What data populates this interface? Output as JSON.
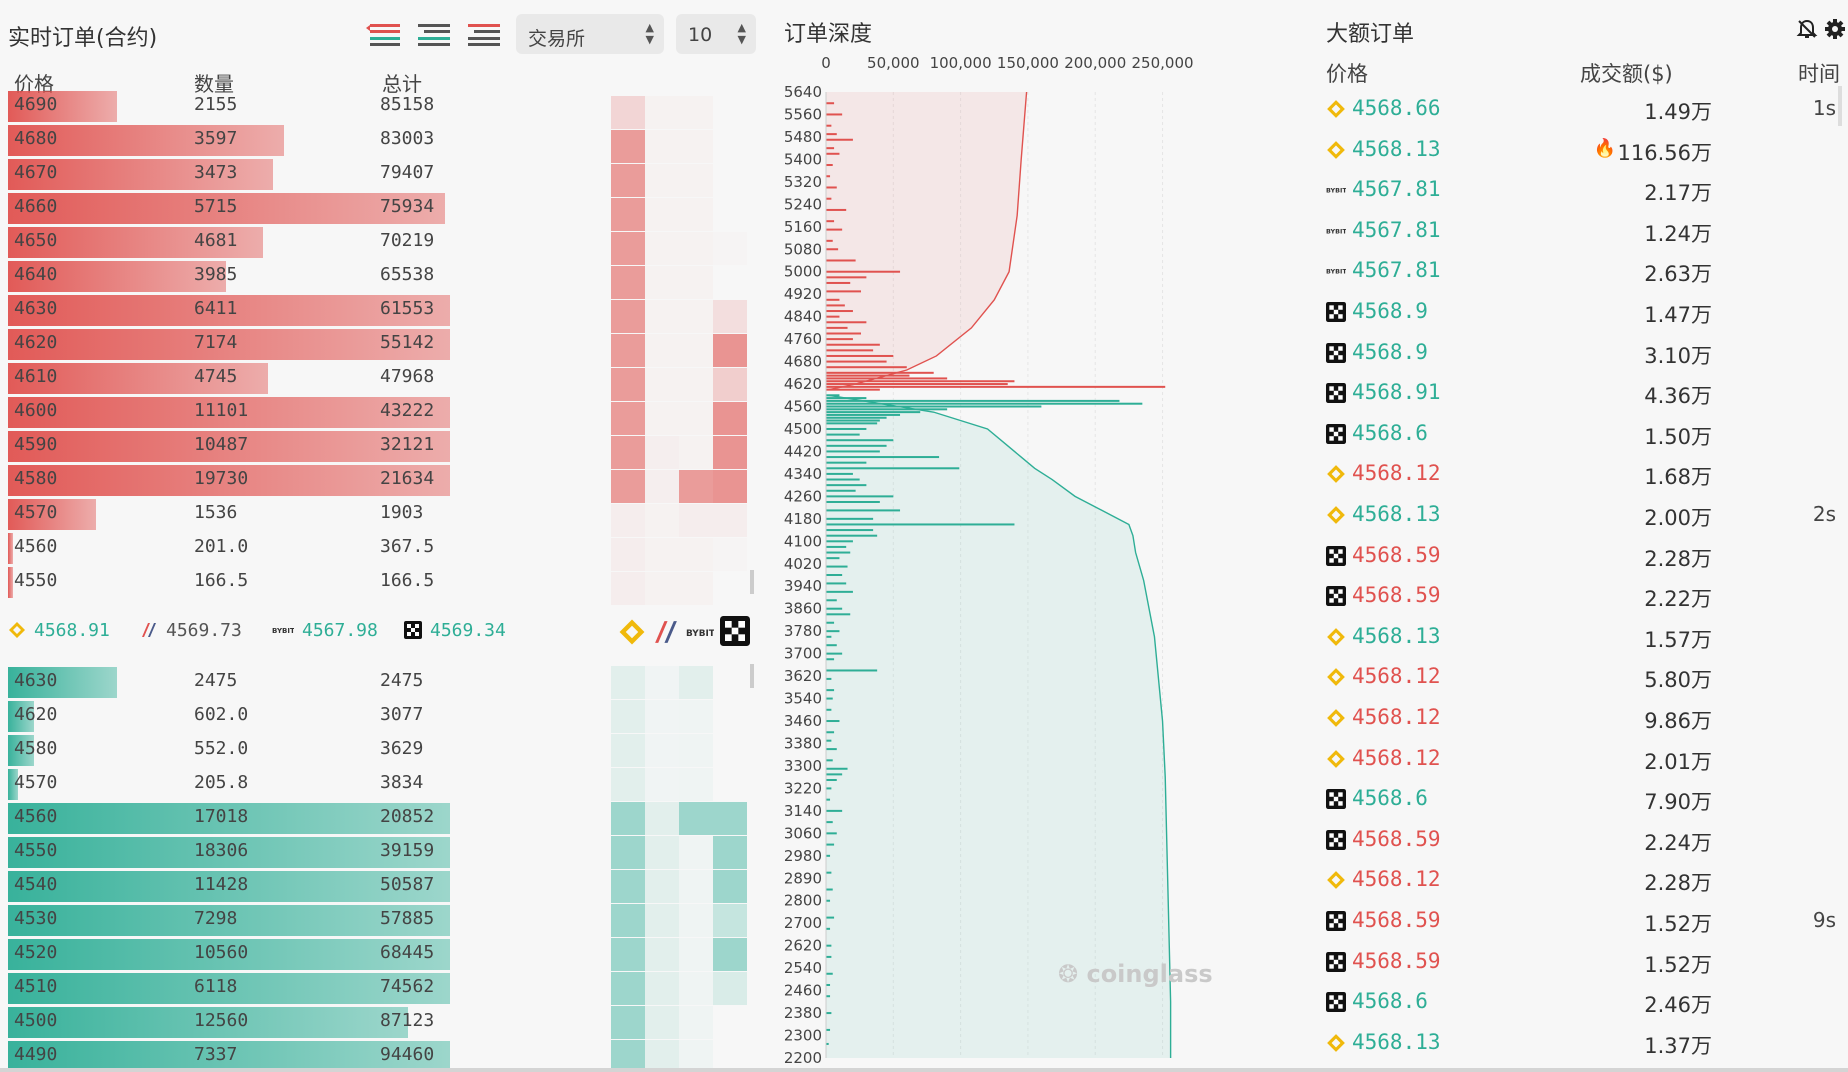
{
  "orderbook": {
    "title": "实时订单(合约)",
    "exchange_select": "交易所",
    "depth_select": "10",
    "columns": {
      "price": "价格",
      "qty": "数量",
      "total": "总计"
    },
    "asks": [
      {
        "price": "4690",
        "qty": "2155",
        "total": "85158",
        "fill": 0.21
      },
      {
        "price": "4680",
        "qty": "3597",
        "total": "83003",
        "fill": 0.53
      },
      {
        "price": "4670",
        "qty": "3473",
        "total": "79407",
        "fill": 0.51
      },
      {
        "price": "4660",
        "qty": "5715",
        "total": "75934",
        "fill": 0.84
      },
      {
        "price": "4650",
        "qty": "4681",
        "total": "70219",
        "fill": 0.49
      },
      {
        "price": "4640",
        "qty": "3985",
        "total": "65538",
        "fill": 0.42
      },
      {
        "price": "4630",
        "qty": "6411",
        "total": "61553",
        "fill": 0.85
      },
      {
        "price": "4620",
        "qty": "7174",
        "total": "55142",
        "fill": 0.85
      },
      {
        "price": "4610",
        "qty": "4745",
        "total": "47968",
        "fill": 0.5
      },
      {
        "price": "4600",
        "qty": "11101",
        "total": "43222",
        "fill": 0.85
      },
      {
        "price": "4590",
        "qty": "10487",
        "total": "32121",
        "fill": 0.85
      },
      {
        "price": "4580",
        "qty": "19730",
        "total": "21634",
        "fill": 0.85
      },
      {
        "price": "4570",
        "qty": "1536",
        "total": "1903",
        "fill": 0.17
      },
      {
        "price": "4560",
        "qty": "201.0",
        "total": "367.5",
        "fill": 0.01
      },
      {
        "price": "4550",
        "qty": "166.5",
        "total": "166.5",
        "fill": 0.01
      }
    ],
    "bids": [
      {
        "price": "4630",
        "qty": "2475",
        "total": "2475",
        "fill": 0.21
      },
      {
        "price": "4620",
        "qty": "602.0",
        "total": "3077",
        "fill": 0.05
      },
      {
        "price": "4580",
        "qty": "552.0",
        "total": "3629",
        "fill": 0.05
      },
      {
        "price": "4570",
        "qty": "205.8",
        "total": "3834",
        "fill": 0.02
      },
      {
        "price": "4560",
        "qty": "17018",
        "total": "20852",
        "fill": 0.85
      },
      {
        "price": "4550",
        "qty": "18306",
        "total": "39159",
        "fill": 0.85
      },
      {
        "price": "4540",
        "qty": "11428",
        "total": "50587",
        "fill": 0.85
      },
      {
        "price": "4530",
        "qty": "7298",
        "total": "57885",
        "fill": 0.85
      },
      {
        "price": "4520",
        "qty": "10560",
        "total": "68445",
        "fill": 0.85
      },
      {
        "price": "4510",
        "qty": "6118",
        "total": "74562",
        "fill": 0.85
      },
      {
        "price": "4500",
        "qty": "12560",
        "total": "87123",
        "fill": 0.77
      },
      {
        "price": "4490",
        "qty": "7337",
        "total": "94460",
        "fill": 0.85
      }
    ],
    "exchange_prices": [
      {
        "exchange": "binance",
        "price": "4568.91",
        "color": "#2eae96",
        "icon": "binance-icon"
      },
      {
        "exchange": "bitmex",
        "price": "4569.73",
        "color": "#555555",
        "icon": "bitmex-icon"
      },
      {
        "exchange": "bybit",
        "price": "4567.98",
        "color": "#2eae96",
        "icon": "bybit-icon"
      },
      {
        "exchange": "okx",
        "price": "4569.34",
        "color": "#2eae96",
        "icon": "okx-icon"
      }
    ]
  },
  "depth": {
    "title": "订单深度",
    "watermark": "coinglass"
  },
  "chart_data": {
    "type": "bar",
    "orientation": "horizontal",
    "title": "订单深度",
    "x_ticks": [
      "0",
      "50,000",
      "100,000",
      "150,000",
      "200,000",
      "250,000"
    ],
    "xlim": [
      0,
      260000
    ],
    "y_ticks": [
      "5640",
      "5560",
      "5480",
      "5400",
      "5320",
      "5240",
      "5160",
      "5080",
      "5000",
      "4920",
      "4840",
      "4760",
      "4680",
      "4620",
      "4560",
      "4500",
      "4420",
      "4340",
      "4260",
      "4180",
      "4100",
      "4020",
      "3940",
      "3860",
      "3780",
      "3700",
      "3620",
      "3540",
      "3460",
      "3380",
      "3300",
      "3220",
      "3140",
      "3060",
      "2980",
      "2890",
      "2800",
      "2700",
      "2620",
      "2540",
      "2460",
      "2380",
      "2300",
      "2200"
    ],
    "ylim": [
      2200,
      5640
    ],
    "series": [
      {
        "color": "#e0524f",
        "bars": [
          [
            5600,
            6000
          ],
          [
            5560,
            12000
          ],
          [
            5520,
            4000
          ],
          [
            5490,
            8000
          ],
          [
            5470,
            20000
          ],
          [
            5440,
            6000
          ],
          [
            5420,
            10000
          ],
          [
            5380,
            5000
          ],
          [
            5340,
            3000
          ],
          [
            5300,
            8000
          ],
          [
            5260,
            4000
          ],
          [
            5220,
            15000
          ],
          [
            5180,
            6000
          ],
          [
            5150,
            12000
          ],
          [
            5110,
            5000
          ],
          [
            5080,
            9000
          ],
          [
            5040,
            22000
          ],
          [
            5000,
            55000
          ],
          [
            4980,
            30000
          ],
          [
            4960,
            18000
          ],
          [
            4930,
            26000
          ],
          [
            4900,
            10000
          ],
          [
            4880,
            14000
          ],
          [
            4860,
            20000
          ],
          [
            4840,
            10000
          ],
          [
            4820,
            30000
          ],
          [
            4800,
            16000
          ],
          [
            4780,
            26000
          ],
          [
            4760,
            20000
          ],
          [
            4740,
            40000
          ],
          [
            4720,
            35000
          ],
          [
            4700,
            50000
          ],
          [
            4680,
            45000
          ],
          [
            4660,
            60000
          ],
          [
            4640,
            80000
          ],
          [
            4630,
            62000
          ],
          [
            4620,
            90000
          ],
          [
            4610,
            140000
          ],
          [
            4600,
            135000
          ],
          [
            4590,
            252000
          ],
          [
            4580,
            40000
          ]
        ],
        "cumulative": [
          [
            5640,
            149000
          ],
          [
            5400,
            145000
          ],
          [
            5200,
            142000
          ],
          [
            5000,
            136000
          ],
          [
            4900,
            125000
          ],
          [
            4800,
            108000
          ],
          [
            4700,
            82000
          ],
          [
            4650,
            60000
          ],
          [
            4600,
            22000
          ],
          [
            4580,
            2000
          ]
        ]
      },
      {
        "color": "#2eae96",
        "bars": [
          [
            4560,
            10000
          ],
          [
            4550,
            30000
          ],
          [
            4540,
            218000
          ],
          [
            4530,
            235000
          ],
          [
            4520,
            160000
          ],
          [
            4510,
            90000
          ],
          [
            4500,
            70000
          ],
          [
            4490,
            55000
          ],
          [
            4480,
            45000
          ],
          [
            4470,
            40000
          ],
          [
            4460,
            38000
          ],
          [
            4440,
            30000
          ],
          [
            4420,
            25000
          ],
          [
            4400,
            50000
          ],
          [
            4380,
            45000
          ],
          [
            4360,
            40000
          ],
          [
            4340,
            84000
          ],
          [
            4320,
            30000
          ],
          [
            4300,
            99000
          ],
          [
            4280,
            20000
          ],
          [
            4260,
            25000
          ],
          [
            4240,
            30000
          ],
          [
            4220,
            22000
          ],
          [
            4200,
            50000
          ],
          [
            4180,
            40000
          ],
          [
            4150,
            55000
          ],
          [
            4120,
            35000
          ],
          [
            4100,
            140000
          ],
          [
            4080,
            35000
          ],
          [
            4060,
            38000
          ],
          [
            4040,
            20000
          ],
          [
            4020,
            15000
          ],
          [
            4000,
            18000
          ],
          [
            3980,
            10000
          ],
          [
            3950,
            16000
          ],
          [
            3920,
            12000
          ],
          [
            3890,
            15000
          ],
          [
            3860,
            20000
          ],
          [
            3830,
            8000
          ],
          [
            3800,
            12000
          ],
          [
            3780,
            18000
          ],
          [
            3750,
            6000
          ],
          [
            3720,
            10000
          ],
          [
            3700,
            4000
          ],
          [
            3670,
            8000
          ],
          [
            3640,
            12000
          ],
          [
            3620,
            6000
          ],
          [
            3580,
            38000
          ],
          [
            3550,
            4000
          ],
          [
            3510,
            6000
          ],
          [
            3480,
            5000
          ],
          [
            3440,
            4000
          ],
          [
            3400,
            10000
          ],
          [
            3360,
            6000
          ],
          [
            3330,
            4000
          ],
          [
            3300,
            8000
          ],
          [
            3260,
            5000
          ],
          [
            3230,
            16000
          ],
          [
            3210,
            12000
          ],
          [
            3190,
            8000
          ],
          [
            3160,
            4000
          ],
          [
            3120,
            3000
          ],
          [
            3080,
            12000
          ],
          [
            3040,
            5000
          ],
          [
            3000,
            8000
          ],
          [
            2960,
            6000
          ],
          [
            2920,
            3000
          ],
          [
            2860,
            4000
          ],
          [
            2800,
            5000
          ],
          [
            2760,
            3000
          ],
          [
            2700,
            6000
          ],
          [
            2660,
            3000
          ],
          [
            2600,
            4000
          ],
          [
            2560,
            4000
          ],
          [
            2500,
            5000
          ],
          [
            2460,
            3000
          ],
          [
            2420,
            3000
          ],
          [
            2360,
            4000
          ],
          [
            2300,
            3000
          ],
          [
            2250,
            2000
          ]
        ],
        "cumulative": [
          [
            4560,
            2000
          ],
          [
            4500,
            80000
          ],
          [
            4440,
            120000
          ],
          [
            4380,
            135000
          ],
          [
            4340,
            145000
          ],
          [
            4300,
            155000
          ],
          [
            4260,
            168000
          ],
          [
            4200,
            185000
          ],
          [
            4150,
            205000
          ],
          [
            4100,
            225000
          ],
          [
            4060,
            228000
          ],
          [
            4000,
            230000
          ],
          [
            3900,
            236000
          ],
          [
            3800,
            240000
          ],
          [
            3700,
            244000
          ],
          [
            3600,
            246000
          ],
          [
            3500,
            248000
          ],
          [
            3400,
            250000
          ],
          [
            3200,
            252000
          ],
          [
            3000,
            253000
          ],
          [
            2800,
            254000
          ],
          [
            2600,
            255000
          ],
          [
            2400,
            256000
          ],
          [
            2200,
            256000
          ]
        ]
      }
    ]
  },
  "big_orders": {
    "title": "大额订单",
    "col_price": "价格",
    "col_amount": "成交额($)",
    "col_time": "时间",
    "rows": [
      {
        "exchange": "binance",
        "price": "4568.66",
        "side": "buy",
        "amount": "1.49万",
        "time": "1s"
      },
      {
        "exchange": "binance",
        "price": "4568.13",
        "side": "buy",
        "amount": "116.56万",
        "time": "",
        "hot": true
      },
      {
        "exchange": "bybit",
        "price": "4567.81",
        "side": "buy",
        "amount": "2.17万",
        "time": ""
      },
      {
        "exchange": "bybit",
        "price": "4567.81",
        "side": "buy",
        "amount": "1.24万",
        "time": ""
      },
      {
        "exchange": "bybit",
        "price": "4567.81",
        "side": "buy",
        "amount": "2.63万",
        "time": ""
      },
      {
        "exchange": "okx",
        "price": "4568.9",
        "side": "buy",
        "amount": "1.47万",
        "time": ""
      },
      {
        "exchange": "okx",
        "price": "4568.9",
        "side": "buy",
        "amount": "3.10万",
        "time": ""
      },
      {
        "exchange": "okx",
        "price": "4568.91",
        "side": "buy",
        "amount": "4.36万",
        "time": ""
      },
      {
        "exchange": "okx",
        "price": "4568.6",
        "side": "buy",
        "amount": "1.50万",
        "time": ""
      },
      {
        "exchange": "binance",
        "price": "4568.12",
        "side": "sell",
        "amount": "1.68万",
        "time": ""
      },
      {
        "exchange": "binance",
        "price": "4568.13",
        "side": "buy",
        "amount": "2.00万",
        "time": "2s"
      },
      {
        "exchange": "okx",
        "price": "4568.59",
        "side": "sell",
        "amount": "2.28万",
        "time": ""
      },
      {
        "exchange": "okx",
        "price": "4568.59",
        "side": "sell",
        "amount": "2.22万",
        "time": ""
      },
      {
        "exchange": "binance",
        "price": "4568.13",
        "side": "buy",
        "amount": "1.57万",
        "time": ""
      },
      {
        "exchange": "binance",
        "price": "4568.12",
        "side": "sell",
        "amount": "5.80万",
        "time": ""
      },
      {
        "exchange": "binance",
        "price": "4568.12",
        "side": "sell",
        "amount": "9.86万",
        "time": ""
      },
      {
        "exchange": "binance",
        "price": "4568.12",
        "side": "sell",
        "amount": "2.01万",
        "time": ""
      },
      {
        "exchange": "okx",
        "price": "4568.6",
        "side": "buy",
        "amount": "7.90万",
        "time": ""
      },
      {
        "exchange": "okx",
        "price": "4568.59",
        "side": "sell",
        "amount": "2.24万",
        "time": ""
      },
      {
        "exchange": "binance",
        "price": "4568.12",
        "side": "sell",
        "amount": "2.28万",
        "time": ""
      },
      {
        "exchange": "okx",
        "price": "4568.59",
        "side": "sell",
        "amount": "1.52万",
        "time": "9s"
      },
      {
        "exchange": "okx",
        "price": "4568.59",
        "side": "sell",
        "amount": "1.52万",
        "time": ""
      },
      {
        "exchange": "okx",
        "price": "4568.6",
        "side": "buy",
        "amount": "2.46万",
        "time": ""
      },
      {
        "exchange": "binance",
        "price": "4568.13",
        "side": "buy",
        "amount": "1.37万",
        "time": ""
      }
    ]
  },
  "colors": {
    "ask": "#e0524f",
    "bid": "#2eae96",
    "binance": "#f0b90b"
  }
}
